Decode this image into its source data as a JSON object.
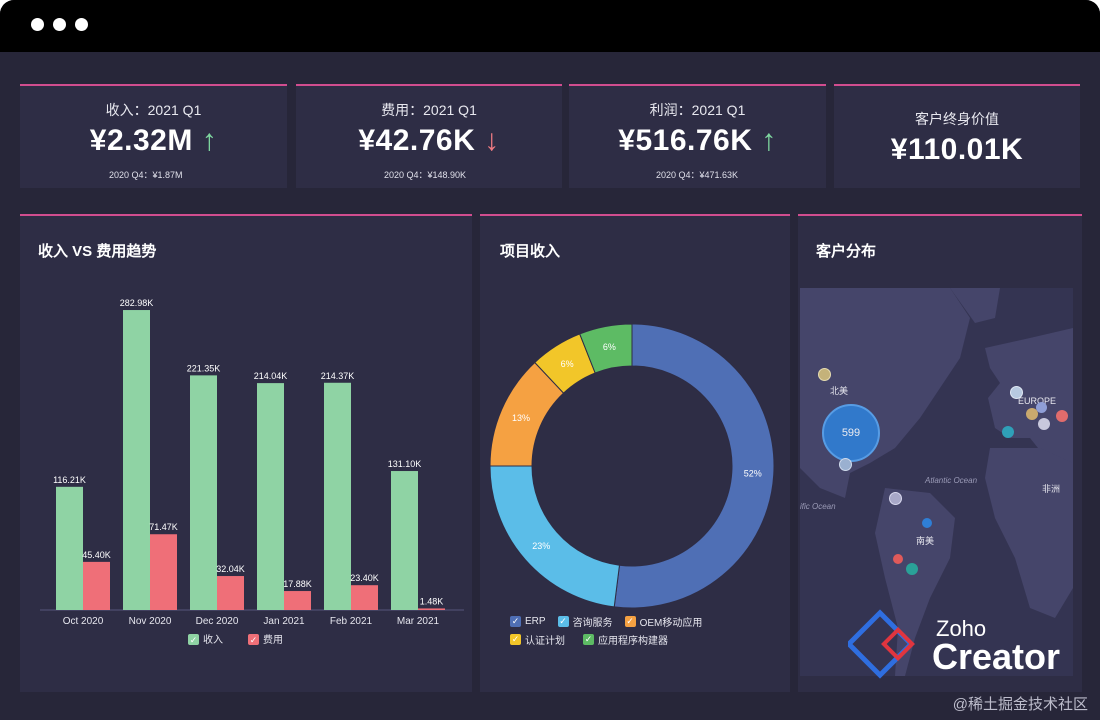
{
  "kpis": [
    {
      "label": "收入：2021 Q1",
      "value": "¥2.32M",
      "trend": "up",
      "prev": "2020 Q4：¥1.87M"
    },
    {
      "label": "费用：2021 Q1",
      "value": "¥42.76K",
      "trend": "down",
      "prev": "2020 Q4：¥148.90K"
    },
    {
      "label": "利润：2021 Q1",
      "value": "¥516.76K",
      "trend": "up",
      "prev": "2020 Q4：¥471.63K"
    },
    {
      "label": "客户终身价值",
      "value": "¥110.01K"
    }
  ],
  "trend_panel": {
    "title": "收入 VS 费用趋势"
  },
  "pie_panel": {
    "title": "项目收入"
  },
  "map_panel": {
    "title": "客户分布",
    "labels": {
      "north_america": "北美",
      "europe": "EUROPE",
      "africa": "非洲",
      "south_america": "南美",
      "atlantic": "Atlantic Ocean",
      "pacific": "ific Ocean",
      "bubble_value": "599"
    }
  },
  "colors": {
    "income": "#8fd3a4",
    "expense": "#ef6f78",
    "accent": "#d14d8f",
    "card": "#2e2d45",
    "bg": "#272639"
  },
  "chart_data": [
    {
      "type": "bar",
      "categories": [
        "Oct 2020",
        "Nov 2020",
        "Dec 2020",
        "Jan 2021",
        "Feb 2021",
        "Mar 2021"
      ],
      "series": [
        {
          "name": "收入",
          "values": [
            116.21,
            282.98,
            221.35,
            214.04,
            214.37,
            131.1
          ],
          "labels": [
            "116.21K",
            "282.98K",
            "221.35K",
            "214.04K",
            "214.37K",
            "131.10K"
          ],
          "color": "#8fd3a4"
        },
        {
          "name": "费用",
          "values": [
            45.4,
            71.47,
            32.04,
            17.88,
            23.4,
            1.48
          ],
          "labels": [
            "45.40K",
            "71.47K",
            "32.04K",
            "17.88K",
            "23.40K",
            "1.48K"
          ],
          "color": "#ef6f78"
        }
      ],
      "ylim": [
        0,
        300
      ],
      "legend": "bottom",
      "grid": false
    },
    {
      "type": "pie",
      "donut": true,
      "slices": [
        {
          "name": "ERP",
          "value": 52,
          "label": "52%",
          "color": "#4f6fb5"
        },
        {
          "name": "咨询服务",
          "value": 23,
          "label": "23%",
          "color": "#5bbde8"
        },
        {
          "name": "OEM移动应用",
          "value": 13,
          "label": "13%",
          "color": "#f5a142"
        },
        {
          "name": "认证计划",
          "value": 6,
          "label": "6%",
          "color": "#f2c629"
        },
        {
          "name": "应用程序构建器",
          "value": 6,
          "label": "6%",
          "color": "#5dbb64"
        }
      ],
      "legend": "bottom"
    }
  ],
  "logo": {
    "line1": "Zoho",
    "line2": "Creator"
  },
  "watermark": "@稀土掘金技术社区"
}
